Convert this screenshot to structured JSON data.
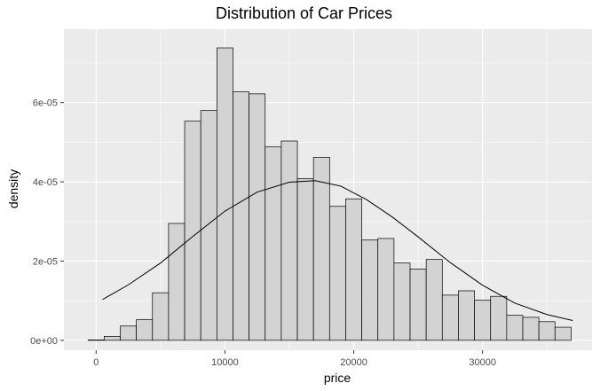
{
  "chart_data": {
    "type": "bar",
    "title": "Distribution of Car Prices",
    "xlabel": "price",
    "ylabel": "density",
    "xlim": [
      -2500,
      38500
    ],
    "ylim": [
      -2.5e-06,
      7.85e-05
    ],
    "bin_width": 1250,
    "bins_start": -625,
    "x_ticks": [
      0,
      10000,
      20000,
      30000
    ],
    "x_tick_labels": [
      "0",
      "10000",
      "20000",
      "30000"
    ],
    "y_ticks": [
      0,
      2e-05,
      4e-05,
      6e-05
    ],
    "y_tick_labels": [
      "0e+00",
      "2e-05",
      "4e-05",
      "6e-05"
    ],
    "histogram_density": [
      1e-07,
      1e-06,
      3.6e-06,
      5.2e-06,
      1.2e-05,
      2.95e-05,
      5.53e-05,
      5.8e-05,
      7.38e-05,
      6.27e-05,
      6.22e-05,
      4.88e-05,
      5.03e-05,
      4.08e-05,
      4.62e-05,
      3.38e-05,
      3.57e-05,
      2.53e-05,
      2.57e-05,
      1.95e-05,
      1.8e-05,
      2.04e-05,
      1.14e-05,
      1.25e-05,
      1.01e-05,
      1.11e-05,
      6.3e-06,
      5.8e-06,
      4.7e-06,
      3.3e-06
    ],
    "normal_curve": {
      "x": [
        500,
        2500,
        5000,
        7500,
        10000,
        12500,
        15000,
        17000,
        19000,
        21000,
        23000,
        25000,
        27500,
        30000,
        32500,
        35000,
        37000
      ],
      "density": [
        1.03e-05,
        1.4e-05,
        1.95e-05,
        2.62e-05,
        3.26e-05,
        3.74e-05,
        3.99e-05,
        4.03e-05,
        3.89e-05,
        3.55e-05,
        3.11e-05,
        2.61e-05,
        1.96e-05,
        1.39e-05,
        9.4e-06,
        6.5e-06,
        5e-06
      ]
    },
    "grid": true,
    "legend": "none",
    "colors": {
      "panel_background": "#ebebeb",
      "grid_major": "#ffffff",
      "bar_fill": "#d3d3d3",
      "bar_outline": "#000000",
      "curve": "#000000"
    }
  }
}
